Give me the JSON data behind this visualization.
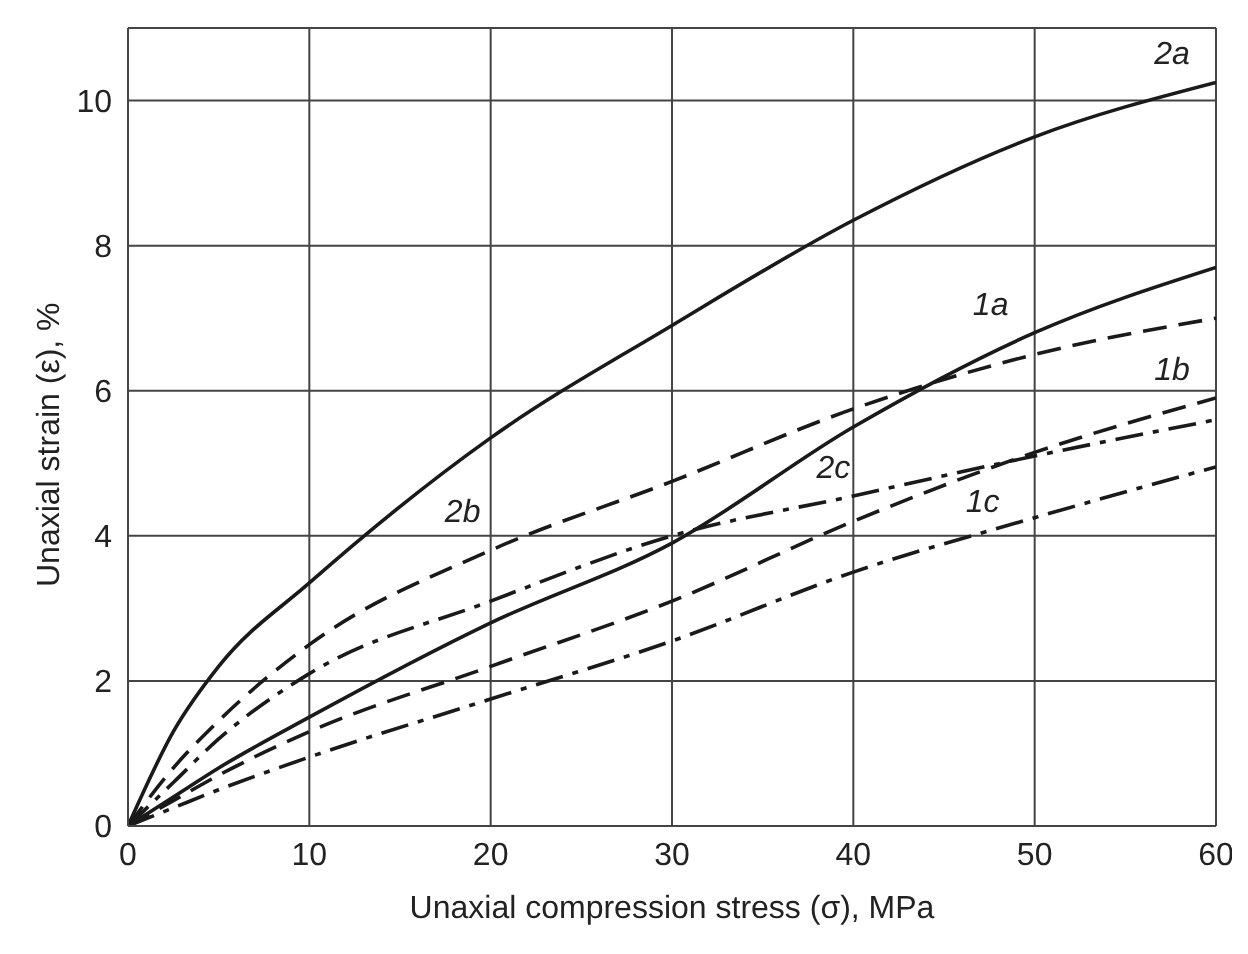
{
  "chart_data": {
    "type": "line",
    "xlabel": "Unaxial compression stress (σ), MPa",
    "ylabel": "Unaxial strain (ε), %",
    "x": [
      0,
      2.5,
      5,
      10,
      20,
      30,
      40,
      50,
      60
    ],
    "series": [
      {
        "name": "2a",
        "color": "#1a1a1a",
        "line_style": "solid",
        "values": [
          0,
          1.3,
          2.2,
          3.35,
          5.35,
          6.9,
          8.35,
          9.5,
          10.25
        ]
      },
      {
        "name": "1a",
        "color": "#1a1a1a",
        "line_style": "solid",
        "values": [
          0,
          0.4,
          0.8,
          1.5,
          2.8,
          3.9,
          5.5,
          6.8,
          7.7
        ]
      },
      {
        "name": "2b",
        "color": "#1a1a1a",
        "line_style": "dashed",
        "values": [
          0,
          0.8,
          1.45,
          2.5,
          3.8,
          4.75,
          5.75,
          6.5,
          7.0
        ]
      },
      {
        "name": "1b",
        "color": "#1a1a1a",
        "line_style": "dashed",
        "values": [
          0,
          0.35,
          0.7,
          1.3,
          2.2,
          3.1,
          4.2,
          5.15,
          5.9
        ]
      },
      {
        "name": "2c",
        "color": "#1a1a1a",
        "line_style": "dashdot",
        "values": [
          0,
          0.6,
          1.2,
          2.1,
          3.1,
          4.0,
          4.55,
          5.1,
          5.6
        ]
      },
      {
        "name": "1c",
        "color": "#1a1a1a",
        "line_style": "dashdot",
        "values": [
          0,
          0.25,
          0.5,
          0.95,
          1.75,
          2.55,
          3.5,
          4.25,
          4.95
        ]
      }
    ],
    "xlim": [
      0,
      60
    ],
    "ylim": [
      0,
      11
    ],
    "xticks": [
      0,
      10,
      20,
      30,
      40,
      50,
      60
    ],
    "yticks": [
      0,
      2,
      4,
      6,
      8,
      10
    ],
    "grid": true,
    "legend": false,
    "marker": "none"
  }
}
